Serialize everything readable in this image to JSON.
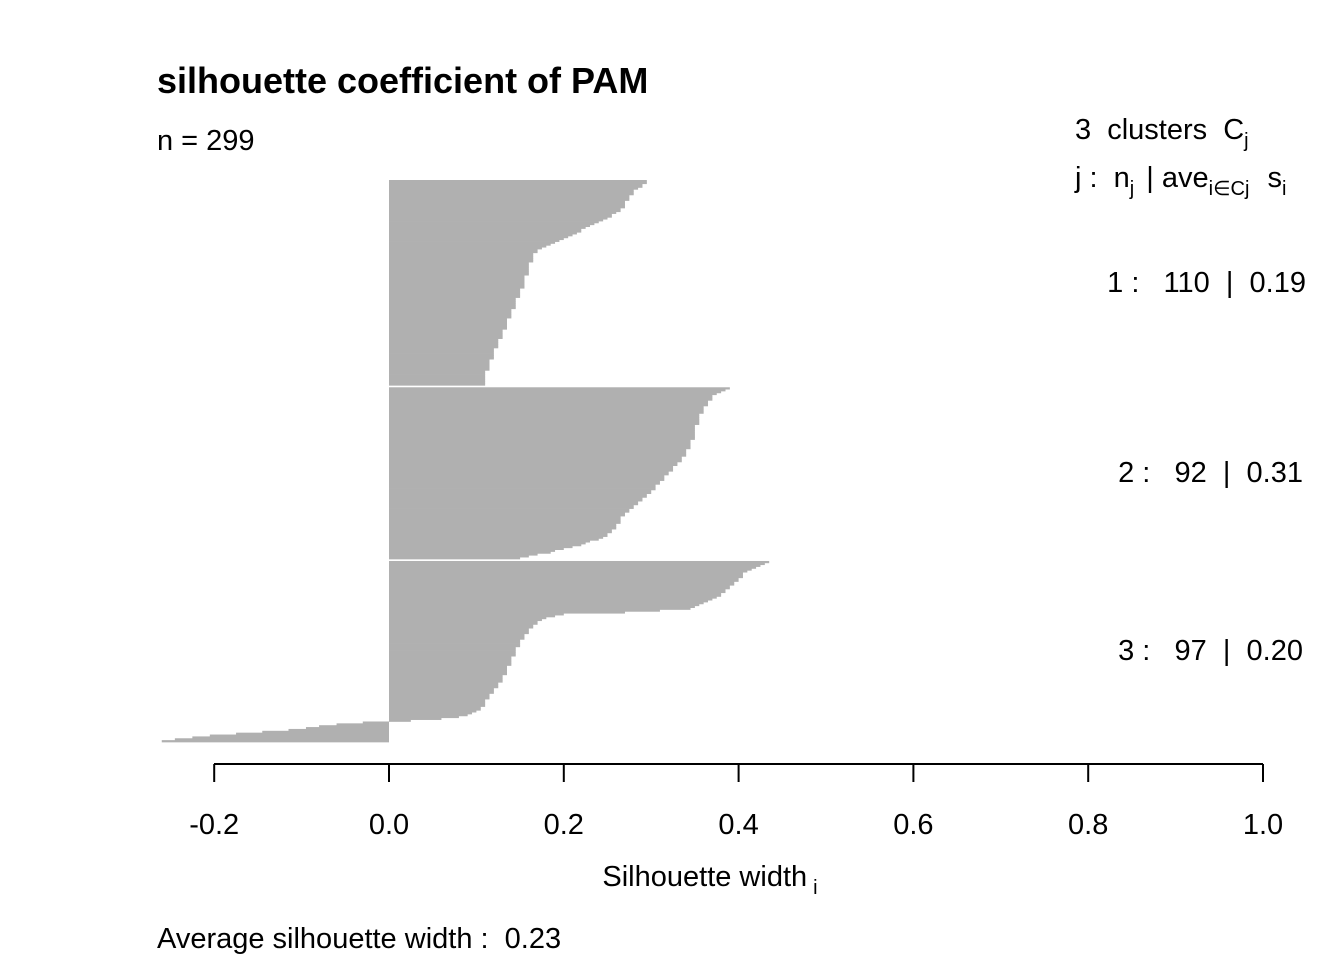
{
  "chart_data": {
    "type": "bar",
    "orientation": "horizontal",
    "title": "silhouette coefficient of PAM",
    "n_label": "n = 299",
    "xlabel": "Silhouette width",
    "xlabel_sub": "i",
    "xlim": [
      -0.26,
      1.0
    ],
    "x_ticks": [
      "-0.2",
      "0.0",
      "0.2",
      "0.4",
      "0.6",
      "0.8",
      "1.0"
    ],
    "bar_color": "#b0b0b0",
    "legend": {
      "clusters_count": "3",
      "clusters_text": "clusters",
      "cluster_symbol": "C",
      "cluster_symbol_sub": "j",
      "header_j": "j :",
      "header_n": "n",
      "header_n_sub": "j",
      "header_sep": "|",
      "header_ave": "ave",
      "header_ave_sub": "i∈Cj",
      "header_s": "s",
      "header_s_sub": "i"
    },
    "clusters": [
      {
        "label": "1 :   110  |  0.19",
        "n": 110,
        "avg_width": 0.19,
        "profile": [
          [
            0,
            0.297
          ],
          [
            0.05,
            0.28
          ],
          [
            0.15,
            0.265
          ],
          [
            0.22,
            0.23
          ],
          [
            0.28,
            0.205
          ],
          [
            0.32,
            0.18
          ],
          [
            0.35,
            0.168
          ],
          [
            0.42,
            0.16
          ],
          [
            0.5,
            0.155
          ],
          [
            0.6,
            0.145
          ],
          [
            0.7,
            0.135
          ],
          [
            0.8,
            0.125
          ],
          [
            0.9,
            0.115
          ],
          [
            1.0,
            0.108
          ]
        ]
      },
      {
        "label": "2 :   92  |  0.31",
        "n": 92,
        "avg_width": 0.31,
        "profile": [
          [
            0,
            0.388
          ],
          [
            0.05,
            0.37
          ],
          [
            0.12,
            0.36
          ],
          [
            0.2,
            0.353
          ],
          [
            0.3,
            0.348
          ],
          [
            0.4,
            0.338
          ],
          [
            0.5,
            0.32
          ],
          [
            0.6,
            0.302
          ],
          [
            0.68,
            0.285
          ],
          [
            0.75,
            0.268
          ],
          [
            0.82,
            0.26
          ],
          [
            0.88,
            0.245
          ],
          [
            0.93,
            0.215
          ],
          [
            0.97,
            0.18
          ],
          [
            1.0,
            0.15
          ]
        ]
      },
      {
        "label": "3 :   97  |  0.20",
        "n": 97,
        "avg_width": 0.2,
        "profile": [
          [
            0,
            0.436
          ],
          [
            0.05,
            0.41
          ],
          [
            0.12,
            0.395
          ],
          [
            0.2,
            0.375
          ],
          [
            0.26,
            0.345
          ],
          [
            0.28,
            0.28
          ],
          [
            0.29,
            0.2
          ],
          [
            0.32,
            0.175
          ],
          [
            0.38,
            0.16
          ],
          [
            0.45,
            0.15
          ],
          [
            0.55,
            0.14
          ],
          [
            0.65,
            0.13
          ],
          [
            0.75,
            0.115
          ],
          [
            0.82,
            0.105
          ],
          [
            0.86,
            0.09
          ],
          [
            0.88,
            0.05
          ],
          [
            0.9,
            -0.05
          ],
          [
            0.94,
            -0.12
          ],
          [
            0.97,
            -0.21
          ],
          [
            1.0,
            -0.26
          ]
        ]
      }
    ],
    "average_label": "Average silhouette width :  0.23",
    "average_value": 0.23
  }
}
